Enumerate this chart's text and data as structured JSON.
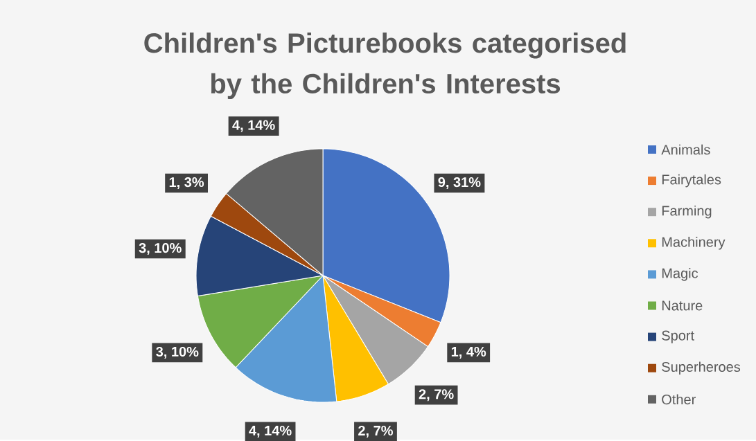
{
  "chart_data": {
    "type": "pie",
    "title": "Children's Picturebooks categorised by the Children's Interests",
    "categories": [
      "Animals",
      "Fairytales",
      "Farming",
      "Machinery",
      "Magic",
      "Nature",
      "Sport",
      "Superheroes",
      "Other"
    ],
    "values": [
      9,
      1,
      2,
      2,
      4,
      3,
      3,
      1,
      4
    ],
    "value_labels": [
      "9, 31%",
      "1, 4%",
      "2, 7%",
      "2, 7%",
      "4, 14%",
      "3, 10%",
      "3, 10%",
      "1, 3%",
      "4, 14%"
    ],
    "colors": [
      "#4472c4",
      "#ed7d31",
      "#a5a5a5",
      "#ffc000",
      "#5b9bd5",
      "#70ad47",
      "#264478",
      "#9e480e",
      "#636363"
    ],
    "legend": "right"
  }
}
